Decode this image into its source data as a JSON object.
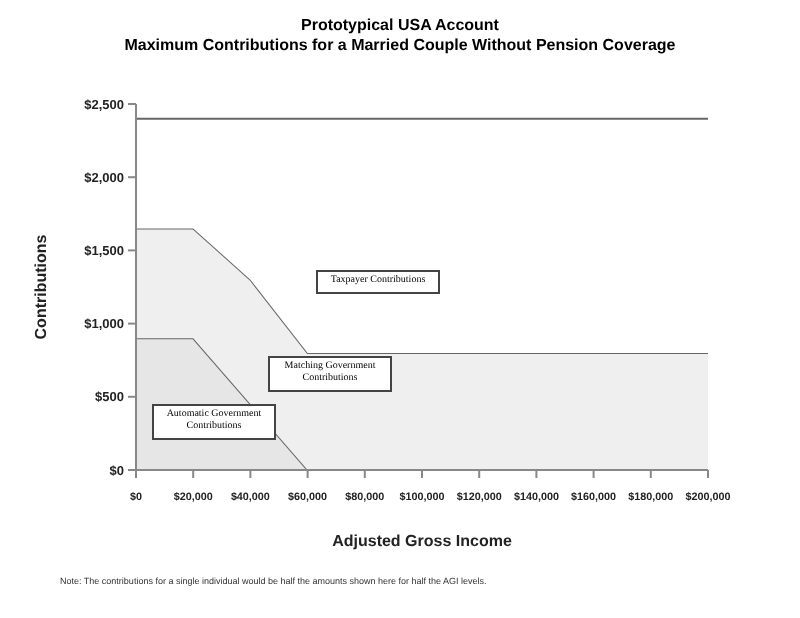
{
  "chart_data": {
    "type": "area",
    "stacked": true,
    "title": "Prototypical USA Account",
    "subtitle": "Maximum Contributions for a Married Couple Without Pension Coverage",
    "xlabel": "Adjusted Gross Income",
    "ylabel": "Contributions",
    "x": [
      0,
      20000,
      40000,
      60000,
      200000
    ],
    "series": [
      {
        "name": "Automatic Government Contributions",
        "color": "#e6e6e6",
        "values": [
          900,
          900,
          450,
          0,
          0
        ]
      },
      {
        "name": "Matching Government Contributions",
        "color": "#efefef",
        "values": [
          750,
          750,
          850,
          800,
          800
        ]
      },
      {
        "name": "Taxpayer Contributions",
        "color": "#ffffff",
        "values": [
          750,
          750,
          1100,
          1600,
          1600
        ]
      }
    ],
    "xlim": [
      0,
      200000
    ],
    "xticks": [
      {
        "value": 0,
        "label": "$0"
      },
      {
        "value": 20000,
        "label": "$20,000"
      },
      {
        "value": 40000,
        "label": "$40,000"
      },
      {
        "value": 60000,
        "label": "$60,000"
      },
      {
        "value": 80000,
        "label": "$80,000"
      },
      {
        "value": 100000,
        "label": "$100,000"
      },
      {
        "value": 120000,
        "label": "$120,000"
      },
      {
        "value": 140000,
        "label": "$140,000"
      },
      {
        "value": 160000,
        "label": "$160,000"
      },
      {
        "value": 180000,
        "label": "$180,000"
      },
      {
        "value": 200000,
        "label": "$200,000"
      }
    ],
    "ylim": [
      0,
      2500
    ],
    "yticks": [
      {
        "value": 0,
        "label": "$0"
      },
      {
        "value": 500,
        "label": "$500"
      },
      {
        "value": 1000,
        "label": "$1,000"
      },
      {
        "value": 1500,
        "label": "$1,500"
      },
      {
        "value": 2000,
        "label": "$2,000"
      },
      {
        "value": 2500,
        "label": "$2,500"
      }
    ],
    "grid": false,
    "legend": false,
    "annotations": [
      "Note:  The contributions for a single individual would be half the amounts shown here for half the AGI levels."
    ]
  }
}
